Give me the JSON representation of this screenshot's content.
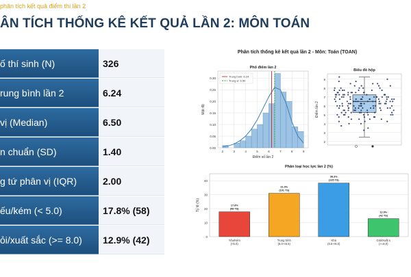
{
  "header": {
    "breadcrumb": "phân tích kết quả điểm thi lần 2",
    "title": "ÂN TÍCH THỐNG KÊ KẾT QUẢ LẦN 2: MÔN TOÁN"
  },
  "stats": [
    {
      "label": "ố thí sinh (N)",
      "value": "326"
    },
    {
      "label": "rung bình lần 2",
      "value": "6.24"
    },
    {
      "label": "vị (Median)",
      "value": "6.50"
    },
    {
      "label": "n chuẩn (SD)",
      "value": "1.40"
    },
    {
      "label": "g tứ phân vị (IQR)",
      "value": "2.00"
    },
    {
      "label": "ếu/kém (< 5.0)",
      "value": "17.8% (58)"
    },
    {
      "label": "ỏi/xuất sắc (>= 8.0)",
      "value": "12.9% (42)"
    }
  ],
  "colors": {
    "label_bg": "#24598a",
    "title": "#1f3d5c",
    "accent": "#d9a21b"
  },
  "figure": {
    "suptitle": "Phân tích thống kê kết quả lần 2 - Môn: Toán (TOAN)"
  },
  "chart_data": [
    {
      "type": "bar",
      "title": "Phổ điểm lần 2",
      "xlabel": "Điểm số lần 2",
      "ylabel": "Mật độ",
      "x_ticks": [
        2,
        3,
        4,
        5,
        6,
        7,
        8,
        9
      ],
      "y_ticks": [
        0.0,
        0.05,
        0.1,
        0.15,
        0.2,
        0.25,
        0.3
      ],
      "xlim": [
        1.6,
        9.4
      ],
      "ylim": [
        0,
        0.33
      ],
      "bin_edges": [
        2.0,
        2.5,
        3.0,
        3.5,
        4.0,
        4.5,
        5.0,
        5.5,
        6.0,
        6.5,
        7.0,
        7.5,
        8.0,
        8.5,
        9.0
      ],
      "values": [
        0.01,
        0.0,
        0.02,
        0.03,
        0.05,
        0.08,
        0.1,
        0.15,
        0.19,
        0.32,
        0.24,
        0.2,
        0.09,
        0.07
      ],
      "kde": {
        "x": [
          2.0,
          2.5,
          3.0,
          3.5,
          4.0,
          4.5,
          5.0,
          5.5,
          6.0,
          6.5,
          7.0,
          7.5,
          8.0,
          8.5,
          9.0
        ],
        "y": [
          0.004,
          0.008,
          0.016,
          0.03,
          0.05,
          0.08,
          0.12,
          0.17,
          0.22,
          0.26,
          0.25,
          0.19,
          0.11,
          0.05,
          0.02
        ]
      },
      "legend": [
        "Trung bình: 6.24",
        "Trung vị: 6.50"
      ],
      "mean": 6.24,
      "median": 6.5,
      "grid": true,
      "legend_position": "top-left"
    },
    {
      "type": "scatter",
      "title": "Biểu đồ hộp",
      "ylabel": "Điểm lần 2",
      "y_ticks": [
        2,
        3,
        4,
        5,
        6,
        7,
        8,
        9
      ],
      "ylim": [
        1.6,
        9.6
      ],
      "box": {
        "q1": 5.25,
        "median": 6.5,
        "q3": 7.25,
        "whisker_low": 2.5,
        "whisker_high": 9.25
      },
      "grid": true
    },
    {
      "type": "bar",
      "title": "Phân loại học lực lần 2 (%)",
      "ylabel": "Tỷ lệ (%)",
      "categories": [
        "Yếu/Kém\n(<5.0)",
        "Trung bình\n(5.0-<6.5)",
        "Khá\n(6.5-<8.0)",
        "Giỏi/Xuất s\n(>=8.0)"
      ],
      "values": [
        17.8,
        31.0,
        38.3,
        12.9
      ],
      "data_labels": [
        "17.8%\n(58 TS)",
        "31.0%\n(101 TS)",
        "38.3%\n(125 TS)",
        "12.9%\n(42 TS)"
      ],
      "colors": [
        "#e8463b",
        "#f5a623",
        "#3b9de3",
        "#3ec46d"
      ],
      "y_ticks": [
        0,
        10,
        20,
        30,
        40
      ],
      "ylim": [
        0,
        45
      ],
      "grid": true
    }
  ]
}
